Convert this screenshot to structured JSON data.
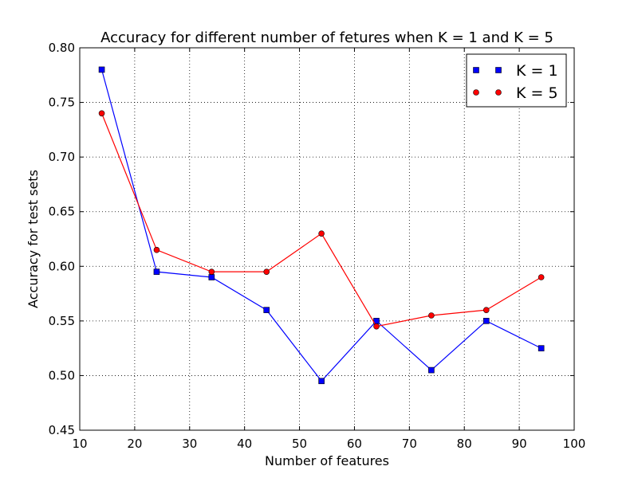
{
  "chart_data": {
    "type": "line",
    "title": "Accuracy for different number of fetures when K = 1 and K = 5",
    "xlabel": "Number of features",
    "ylabel": "Accuracy for test sets",
    "xlim": [
      10,
      100
    ],
    "ylim": [
      0.45,
      0.8
    ],
    "xticks": [
      "10",
      "20",
      "30",
      "40",
      "50",
      "60",
      "70",
      "80",
      "90",
      "100"
    ],
    "yticks": [
      "0.45",
      "0.50",
      "0.55",
      "0.60",
      "0.65",
      "0.70",
      "0.75",
      "0.80"
    ],
    "grid": true,
    "legend_position": "top-right",
    "x": [
      14,
      24,
      34,
      44,
      54,
      64,
      74,
      84,
      94
    ],
    "series": [
      {
        "name": "K = 1",
        "color": "#0000ff",
        "marker": "square",
        "values": [
          0.78,
          0.595,
          0.59,
          0.56,
          0.495,
          0.55,
          0.505,
          0.55,
          0.525
        ]
      },
      {
        "name": "K = 5",
        "color": "#ff0000",
        "marker": "circle",
        "values": [
          0.74,
          0.615,
          0.595,
          0.595,
          0.63,
          0.545,
          0.555,
          0.56,
          0.59
        ]
      }
    ]
  }
}
